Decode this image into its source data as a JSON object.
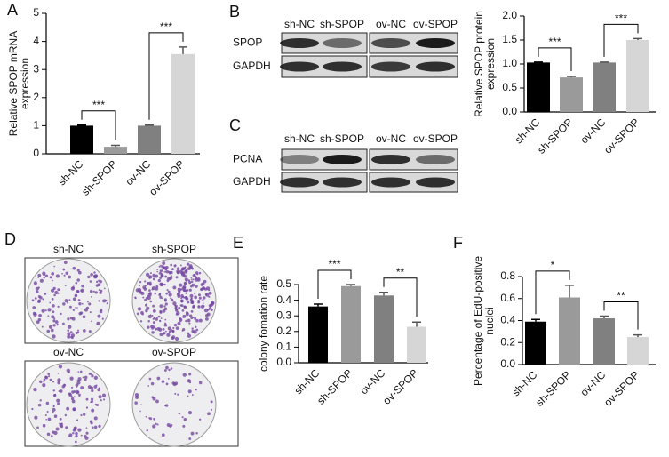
{
  "panels": [
    "A",
    "B",
    "C",
    "D",
    "E",
    "F"
  ],
  "chart_data": [
    {
      "type": "bar",
      "y_label": "Relative SPOP mRNA expression",
      "categories": [
        "sh-NC",
        "sh-SPOP",
        "ov-NC",
        "ov-SPOP"
      ],
      "values": [
        1.0,
        0.25,
        1.0,
        3.55
      ],
      "errors": [
        0.02,
        0.05,
        0.02,
        0.25
      ],
      "colors": [
        "#000000",
        "#9a9a9a",
        "#808080",
        "#d6d6d6"
      ],
      "ylim": [
        0,
        5
      ],
      "yticks": [
        0,
        1,
        2,
        3,
        4,
        5
      ],
      "significance": [
        "***",
        "***"
      ]
    },
    {
      "type": "bar",
      "y_label": "Relative SPOP protein expression",
      "categories": [
        "sh-NC",
        "sh-SPOP",
        "ov-NC",
        "ov-SPOP"
      ],
      "values": [
        1.03,
        0.72,
        1.03,
        1.5
      ],
      "errors": [
        0.01,
        0.02,
        0.01,
        0.03
      ],
      "colors": [
        "#000000",
        "#9a9a9a",
        "#808080",
        "#d6d6d6"
      ],
      "ylim": [
        0,
        2
      ],
      "yticks": [
        {
          "value": 0,
          "label": "0.0"
        },
        0.5,
        {
          "value": 1,
          "label": "1.0"
        },
        1.5,
        {
          "value": 2,
          "label": "2.0"
        }
      ],
      "significance": [
        "***",
        "***"
      ]
    },
    {
      "type": "bar",
      "y_label": "colony fomation rate",
      "categories": [
        "sh-NC",
        "sh-SPOP",
        "ov-NC",
        "ov-SPOP"
      ],
      "values": [
        0.36,
        0.49,
        0.43,
        0.23
      ],
      "errors": [
        0.015,
        0.01,
        0.02,
        0.03
      ],
      "colors": [
        "#000000",
        "#9a9a9a",
        "#808080",
        "#d6d6d6"
      ],
      "ylim": [
        0,
        0.5
      ],
      "yticks": [
        {
          "value": 0,
          "label": "0.0"
        },
        0.1,
        0.2,
        0.3,
        0.4,
        0.5
      ],
      "significance": [
        "***",
        "**"
      ]
    },
    {
      "type": "bar",
      "y_label": "Percentage of EdU-positive nuclei",
      "categories": [
        "sh-NC",
        "sh-SPOP",
        "ov-NC",
        "ov-SPOP"
      ],
      "values": [
        0.39,
        0.61,
        0.42,
        0.25
      ],
      "errors": [
        0.02,
        0.11,
        0.02,
        0.02
      ],
      "colors": [
        "#000000",
        "#9a9a9a",
        "#808080",
        "#d6d6d6"
      ],
      "ylim": [
        0,
        0.8
      ],
      "yticks": [
        {
          "value": 0,
          "label": "0.0"
        },
        0.2,
        0.4,
        0.6,
        0.8
      ],
      "significance": [
        "*",
        "**"
      ]
    }
  ],
  "blots": [
    {
      "lanes": [
        "sh-NC",
        "sh-SPOP",
        "ov-NC",
        "ov-SPOP"
      ],
      "rows": [
        "SPOP",
        "GAPDH"
      ]
    },
    {
      "lanes": [
        "sh-NC",
        "sh-SPOP",
        "ov-NC",
        "ov-SPOP"
      ],
      "rows": [
        "PCNA",
        "GAPDH"
      ]
    }
  ],
  "colony": {
    "labels": [
      "sh-NC",
      "sh-SPOP",
      "ov-NC",
      "ov-SPOP"
    ]
  }
}
